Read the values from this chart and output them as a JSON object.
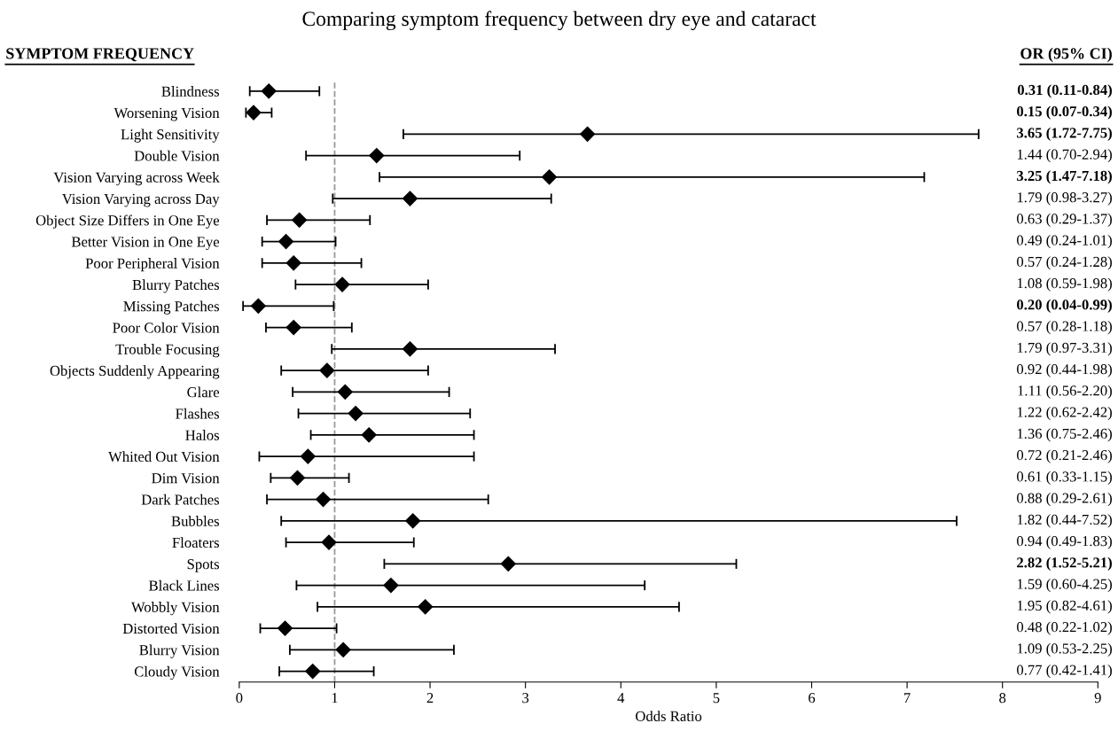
{
  "chart_data": {
    "type": "scatter",
    "orientation": "horizontal",
    "title": "Comparing symptom frequency between dry eye and cataract",
    "ylabel": "SYMPTOM FREQUENCY",
    "xlabel": "Odds Ratio",
    "annotations": [
      "OR (95% CI)",
      "0.31 (0.11-0.84)",
      "0.15 (0.07-0.34)",
      "3.65 (1.72-7.75)",
      "1.44 (0.70-2.94)",
      "3.25 (1.47-7.18)",
      "1.79 (0.98-3.27)",
      "0.63 (0.29-1.37)",
      "0.49 (0.24-1.01)",
      "0.57 (0.24-1.28)",
      "1.08 (0.59-1.98)",
      "0.20 (0.04-0.99)",
      "0.57 (0.28-1.18)",
      "1.79 (0.97-3.31)",
      "0.92 (0.44-1.98)",
      "1.11 (0.56-2.20)",
      "1.22 (0.62-2.42)",
      "1.36 (0.75-2.46)",
      "0.72 (0.21-2.46)",
      "0.61 (0.33-1.15)",
      "0.88 (0.29-2.61)",
      "1.82 (0.44-7.52)",
      "0.94 (0.49-1.83)",
      "2.82 (1.52-5.21)",
      "1.59 (0.60-4.25)",
      "1.95 (0.82-4.61)",
      "0.48 (0.22-1.02)",
      "1.09 (0.53-2.25)",
      "0.77 (0.42-1.41)"
    ],
    "categories": [
      "Blindness",
      "Worsening Vision",
      "Light Sensitivity",
      "Double Vision",
      "Vision Varying across Week",
      "Vision Varying across Day",
      "Object Size Differs in One Eye",
      "Better Vision in One Eye",
      "Poor Peripheral Vision",
      "Blurry Patches",
      "Missing Patches",
      "Poor Color Vision",
      "Trouble Focusing",
      "Objects Suddenly Appearing",
      "Glare",
      "Flashes",
      "Halos",
      "Whited Out Vision",
      "Dim Vision",
      "Dark Patches",
      "Bubbles",
      "Floaters",
      "Spots",
      "Black Lines",
      "Wobbly Vision",
      "Distorted Vision",
      "Blurry Vision",
      "Cloudy Vision"
    ],
    "values": [
      0.31,
      0.15,
      3.65,
      1.44,
      3.25,
      1.79,
      0.63,
      0.49,
      0.57,
      1.08,
      0.2,
      0.57,
      1.79,
      0.92,
      1.11,
      1.22,
      1.36,
      0.72,
      0.61,
      0.88,
      1.82,
      0.94,
      2.82,
      1.59,
      1.95,
      0.48,
      1.09,
      0.77
    ],
    "errors": [
      [
        0.11,
        0.84
      ],
      [
        0.07,
        0.34
      ],
      [
        1.72,
        7.75
      ],
      [
        0.7,
        2.94
      ],
      [
        1.47,
        7.18
      ],
      [
        0.98,
        3.27
      ],
      [
        0.29,
        1.37
      ],
      [
        0.24,
        1.01
      ],
      [
        0.24,
        1.28
      ],
      [
        0.59,
        1.98
      ],
      [
        0.04,
        0.99
      ],
      [
        0.28,
        1.18
      ],
      [
        0.97,
        3.31
      ],
      [
        0.44,
        1.98
      ],
      [
        0.56,
        2.2
      ],
      [
        0.62,
        2.42
      ],
      [
        0.75,
        2.46
      ],
      [
        0.21,
        2.46
      ],
      [
        0.33,
        1.15
      ],
      [
        0.29,
        2.61
      ],
      [
        0.44,
        7.52
      ],
      [
        0.49,
        1.83
      ],
      [
        1.52,
        5.21
      ],
      [
        0.6,
        4.25
      ],
      [
        0.82,
        4.61
      ],
      [
        0.22,
        1.02
      ],
      [
        0.53,
        2.25
      ],
      [
        0.42,
        1.41
      ]
    ],
    "color": "#000000",
    "marker": "diamond",
    "xlim": [
      0,
      9
    ],
    "xticks": [
      0,
      1,
      2,
      3,
      4,
      5,
      6,
      7,
      8,
      9
    ],
    "grid": false,
    "legend": false,
    "ref_lines": [
      {
        "axis": "x",
        "value": 1,
        "color": "#999999",
        "line_style": "dashed"
      }
    ]
  }
}
